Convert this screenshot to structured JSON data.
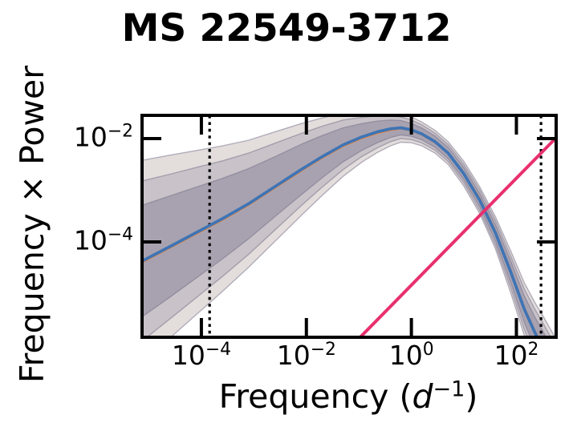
{
  "chart_data": {
    "type": "line",
    "title": "MS 22549-3712",
    "ylabel": "Frequency × Power",
    "xlabel": {
      "prefix": "Frequency (",
      "var": "d",
      "exp": "−1",
      "suffix": ")"
    },
    "x_scale": "log",
    "y_scale": "log",
    "xlim_log": [
      -5.13,
      2.757
    ],
    "ylim_log": [
      -5.845,
      -1.55
    ],
    "x_ticks": [
      {
        "log": -4,
        "base": "10",
        "exp": "−4"
      },
      {
        "log": -2,
        "base": "10",
        "exp": "−2"
      },
      {
        "log": 0,
        "base": "10",
        "exp": "0"
      },
      {
        "log": 2,
        "base": "10",
        "exp": "2"
      }
    ],
    "y_ticks": [
      {
        "log": -2,
        "base": "10",
        "exp": "−2"
      },
      {
        "log": -4,
        "base": "10",
        "exp": "−4"
      }
    ],
    "vlines": {
      "names": [
        "frequency-min-marker",
        "frequency-max-marker"
      ],
      "logf": [
        -3.843,
        2.469
      ],
      "color": "#000000",
      "style": "dotted"
    },
    "series": {
      "logf": [
        -5.13,
        -4.6,
        -4.1,
        -3.6,
        -3.1,
        -2.6,
        -2.1,
        -1.7,
        -1.3,
        -0.95,
        -0.65,
        -0.4,
        -0.2,
        0.0,
        0.2,
        0.45,
        0.7,
        1.0,
        1.3,
        1.6,
        1.9,
        2.15,
        2.35,
        2.5,
        2.76
      ],
      "median_logv": [
        -4.37,
        -4.09,
        -3.82,
        -3.55,
        -3.26,
        -2.93,
        -2.6,
        -2.35,
        -2.12,
        -1.97,
        -1.87,
        -1.81,
        -1.79,
        -1.83,
        -1.91,
        -2.06,
        -2.28,
        -2.68,
        -3.19,
        -3.82,
        -4.6,
        -5.3,
        -5.75,
        -6.05,
        -6.57
      ],
      "median_color": "#3E74B5",
      "model_logv": [
        -4.4,
        -4.12,
        -3.85,
        -3.58,
        -3.29,
        -2.96,
        -2.63,
        -2.38,
        -2.15,
        -2.0,
        -1.9,
        -1.84,
        -1.81,
        -1.85,
        -1.93,
        -2.08,
        -2.3,
        -2.66,
        -3.15,
        -3.78,
        -4.56,
        -5.26,
        -5.71,
        -6.01,
        -6.53
      ],
      "model_color": "#E58742",
      "noise_line": {
        "logf": [
          -0.98,
          2.76
        ],
        "logv": [
          -5.85,
          -1.98
        ],
        "color": "#E8306F",
        "slope_loglog": 1.03
      }
    },
    "bands": [
      {
        "name": "credible-band-outer",
        "color": "#E3DDDC",
        "half_width": [
          1.95,
          1.77,
          1.59,
          1.41,
          1.23,
          1.06,
          0.89,
          0.75,
          0.61,
          0.49,
          0.4,
          0.33,
          0.28,
          0.25,
          0.23,
          0.22,
          0.22,
          0.24,
          0.26,
          0.31,
          0.41,
          0.51,
          0.58,
          0.63,
          0.68
        ]
      },
      {
        "name": "credible-band-middle",
        "color": "#C9C3C9",
        "half_width": [
          1.55,
          1.4,
          1.26,
          1.12,
          0.98,
          0.84,
          0.7,
          0.59,
          0.48,
          0.38,
          0.31,
          0.25,
          0.21,
          0.19,
          0.175,
          0.165,
          0.165,
          0.18,
          0.2,
          0.24,
          0.31,
          0.39,
          0.45,
          0.49,
          0.53
        ]
      },
      {
        "name": "credible-band-inner",
        "color": "#A8A2B0",
        "half_width": [
          1.08,
          0.98,
          0.88,
          0.78,
          0.68,
          0.58,
          0.49,
          0.41,
          0.33,
          0.26,
          0.21,
          0.17,
          0.14,
          0.125,
          0.115,
          0.11,
          0.11,
          0.12,
          0.13,
          0.16,
          0.21,
          0.26,
          0.3,
          0.33,
          0.36
        ]
      }
    ],
    "band_edge_color": "rgba(115,110,135,0.5)",
    "frame_color": "#000000",
    "background_color": "#ffffff"
  }
}
